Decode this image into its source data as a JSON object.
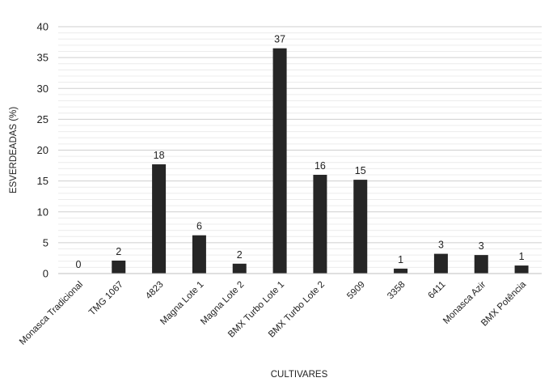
{
  "chart_data": {
    "type": "bar",
    "categories": [
      "Monasca Tradicional",
      "TMG 1067",
      "4823",
      "Magna Lote 1",
      "Magna Lote 2",
      "BMX Turbo Lote 1",
      "BMX Turbo Lote 2",
      "5909",
      "3358",
      "6411",
      "Monasca Azir",
      "BMX Potência"
    ],
    "values": [
      0,
      2.1,
      17.7,
      6.2,
      1.6,
      36.5,
      16.0,
      15.2,
      0.8,
      3.2,
      3.0,
      1.3
    ],
    "data_labels": [
      "0",
      "2",
      "18",
      "6",
      "2",
      "37",
      "16",
      "15",
      "1",
      "3",
      "3",
      "1"
    ],
    "xlabel": "CULTIVARES",
    "ylabel": "ESVERDEADAS (%)",
    "ylim": [
      0,
      40
    ],
    "yticks": [
      0,
      5,
      10,
      15,
      20,
      25,
      30,
      35,
      40
    ],
    "grid": true,
    "bar_color": "#262626",
    "grid_color": "#d9d9d9"
  }
}
